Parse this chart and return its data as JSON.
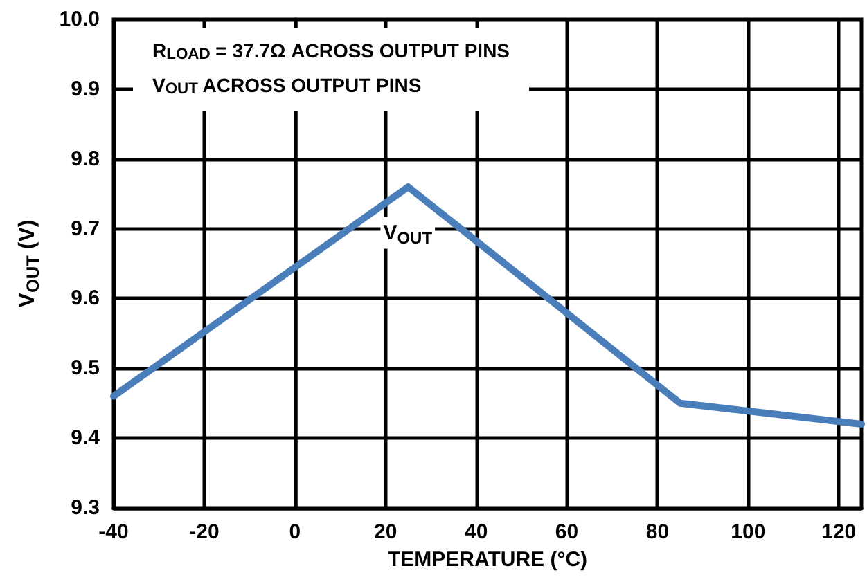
{
  "chart_data": {
    "type": "line",
    "xlabel": "TEMPERATURE (°C)",
    "ylabel": "V$_{OUT}$ (V)",
    "annotations": [
      "R$_{LOAD}$ = 37.7Ω ACROSS OUTPUT PINS",
      "V$_{OUT}$ ACROSS OUTPUT PINS"
    ],
    "x": [
      -40,
      25,
      85,
      125
    ],
    "series": [
      {
        "name": "V$_{OUT}$",
        "color": "#4a7ebb",
        "values": [
          9.46,
          9.76,
          9.45,
          9.42
        ]
      }
    ],
    "xlim": [
      -40,
      125
    ],
    "xticks": [
      -40,
      -20,
      0,
      20,
      40,
      60,
      80,
      100,
      120
    ],
    "ylim": [
      9.3,
      10.0
    ],
    "yticks": [
      9.3,
      9.4,
      9.5,
      9.6,
      9.7,
      9.8,
      9.9,
      {
        "value": 10,
        "label": "10.0"
      }
    ],
    "grid": true,
    "legend": false,
    "marker": "none",
    "line_style": "solid"
  }
}
